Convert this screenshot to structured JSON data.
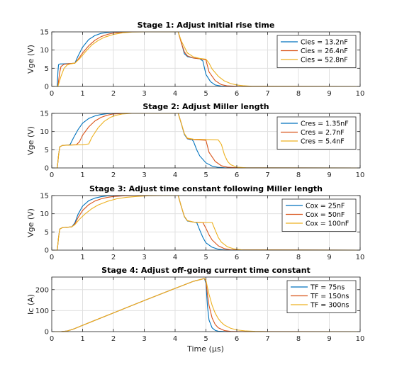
{
  "figure": {
    "xlabel": "Time (μs)"
  },
  "chart_data": [
    {
      "type": "line",
      "title": "Stage 1: Adjust initial rise time",
      "xlabel": "",
      "ylabel": "Vge (V)",
      "xlim": [
        0,
        10
      ],
      "ylim": [
        0,
        15
      ],
      "xticks": [
        0,
        1,
        2,
        3,
        4,
        5,
        6,
        7,
        8,
        9,
        10
      ],
      "yticks": [
        0,
        5,
        10,
        15
      ],
      "grid": true,
      "legend_position": "top-right",
      "series": [
        {
          "name": "Cies = 13.2nF",
          "color": "#0072BD",
          "x": [
            0,
            0.18,
            0.2,
            0.22,
            0.24,
            0.28,
            0.35,
            0.6,
            0.75,
            0.85,
            1.0,
            1.2,
            1.4,
            1.6,
            1.8,
            2.0,
            2.3,
            2.6,
            4.0,
            4.1,
            4.2,
            4.3,
            4.4,
            4.6,
            4.8,
            4.9,
            5.0,
            5.15,
            5.3,
            5.5,
            5.7,
            6.0,
            10.0
          ],
          "y": [
            0,
            0,
            4.0,
            6.0,
            6.1,
            6.2,
            6.2,
            6.3,
            6.4,
            8.3,
            10.8,
            12.9,
            14.0,
            14.6,
            14.85,
            15.0,
            15.0,
            15.0,
            15.0,
            15.0,
            12.2,
            9.0,
            8.2,
            7.8,
            7.6,
            7.0,
            3.3,
            1.3,
            0.4,
            0.1,
            0.03,
            0,
            0
          ]
        },
        {
          "name": "Cies = 26.4nF",
          "color": "#D95319",
          "x": [
            0,
            0.2,
            0.25,
            0.3,
            0.4,
            0.6,
            0.75,
            0.85,
            1.0,
            1.2,
            1.4,
            1.6,
            1.8,
            2.0,
            2.3,
            2.6,
            4.0,
            4.1,
            4.2,
            4.3,
            4.4,
            4.6,
            4.8,
            5.0,
            5.1,
            5.3,
            5.5,
            5.7,
            6.0,
            10.0
          ],
          "y": [
            0,
            0,
            3.5,
            5.5,
            6.1,
            6.3,
            6.4,
            7.4,
            9.2,
            11.2,
            12.7,
            13.7,
            14.3,
            14.7,
            14.95,
            15.0,
            15.0,
            15.0,
            12.0,
            9.5,
            8.4,
            7.8,
            7.6,
            7.3,
            4.0,
            1.6,
            0.5,
            0.15,
            0.03,
            0
          ]
        },
        {
          "name": "Cies = 52.8nF",
          "color": "#EDB120",
          "x": [
            0,
            0.2,
            0.3,
            0.4,
            0.5,
            0.6,
            0.75,
            0.9,
            1.1,
            1.3,
            1.5,
            1.7,
            2.0,
            2.3,
            2.6,
            3.0,
            4.0,
            4.1,
            4.2,
            4.4,
            4.6,
            4.8,
            5.0,
            5.1,
            5.2,
            5.4,
            5.6,
            5.8,
            6.0,
            6.2,
            6.5,
            10.0
          ],
          "y": [
            0,
            0,
            2.8,
            5.0,
            5.9,
            6.2,
            6.4,
            7.6,
            9.6,
            11.4,
            12.6,
            13.5,
            14.3,
            14.75,
            14.95,
            15.0,
            15.0,
            15.0,
            12.5,
            9.2,
            8.1,
            7.7,
            7.5,
            6.4,
            4.8,
            2.8,
            1.5,
            0.8,
            0.4,
            0.2,
            0.05,
            0
          ]
        }
      ]
    },
    {
      "type": "line",
      "title": "Stage 2: Adjust Miller length",
      "xlabel": "",
      "ylabel": "Vge (V)",
      "xlim": [
        0,
        10
      ],
      "ylim": [
        0,
        15
      ],
      "xticks": [
        0,
        1,
        2,
        3,
        4,
        5,
        6,
        7,
        8,
        9,
        10
      ],
      "yticks": [
        0,
        5,
        10,
        15
      ],
      "grid": true,
      "legend_position": "top-right",
      "series": [
        {
          "name": "Cres = 1.35nF",
          "color": "#0072BD",
          "x": [
            0,
            0.18,
            0.22,
            0.26,
            0.35,
            0.55,
            0.6,
            0.7,
            0.85,
            1.0,
            1.2,
            1.4,
            1.6,
            1.8,
            2.0,
            2.4,
            4.0,
            4.1,
            4.2,
            4.3,
            4.4,
            4.5,
            4.55,
            4.6,
            4.7,
            4.8,
            5.0,
            5.2,
            5.4,
            5.6,
            10.0
          ],
          "y": [
            0,
            0,
            3.5,
            5.8,
            6.2,
            6.3,
            6.5,
            8.2,
            10.5,
            12.3,
            13.6,
            14.3,
            14.7,
            14.9,
            15.0,
            15.0,
            15.0,
            15.0,
            12.2,
            9.2,
            8.0,
            7.8,
            7.8,
            7.2,
            5.0,
            3.3,
            1.4,
            0.5,
            0.15,
            0.03,
            0
          ]
        },
        {
          "name": "Cres = 2.7nF",
          "color": "#D95319",
          "x": [
            0,
            0.18,
            0.22,
            0.26,
            0.35,
            0.8,
            0.9,
            1.0,
            1.2,
            1.4,
            1.6,
            1.8,
            2.0,
            2.4,
            4.0,
            4.1,
            4.2,
            4.3,
            4.4,
            4.6,
            4.8,
            5.0,
            5.1,
            5.3,
            5.5,
            5.7,
            6.0,
            10.0
          ],
          "y": [
            0,
            0,
            3.5,
            5.8,
            6.2,
            6.4,
            7.2,
            9.0,
            11.3,
            12.9,
            13.9,
            14.5,
            14.85,
            15.0,
            15.0,
            15.0,
            12.3,
            9.4,
            8.1,
            7.8,
            7.7,
            7.6,
            4.3,
            1.8,
            0.6,
            0.2,
            0.03,
            0
          ]
        },
        {
          "name": "Cres = 5.4nF",
          "color": "#EDB120",
          "x": [
            0,
            0.18,
            0.22,
            0.26,
            0.35,
            1.0,
            1.2,
            1.3,
            1.5,
            1.7,
            1.9,
            2.1,
            2.3,
            2.6,
            4.0,
            4.1,
            4.2,
            4.3,
            4.4,
            4.6,
            5.0,
            5.4,
            5.5,
            5.6,
            5.7,
            5.8,
            6.0,
            6.3,
            10.0
          ],
          "y": [
            0,
            0,
            3.5,
            5.8,
            6.2,
            6.4,
            6.6,
            8.4,
            11.0,
            12.8,
            13.9,
            14.5,
            14.85,
            15.0,
            15.0,
            15.0,
            12.3,
            9.4,
            8.2,
            7.9,
            7.8,
            7.7,
            6.5,
            3.6,
            1.8,
            0.9,
            0.2,
            0.03,
            0
          ]
        }
      ]
    },
    {
      "type": "line",
      "title": "Stage 3: Adjust time constant following Miller length",
      "xlabel": "",
      "ylabel": "Vge (V)",
      "xlim": [
        0,
        10
      ],
      "ylim": [
        0,
        15
      ],
      "xticks": [
        0,
        1,
        2,
        3,
        4,
        5,
        6,
        7,
        8,
        9,
        10
      ],
      "yticks": [
        0,
        5,
        10,
        15
      ],
      "grid": true,
      "legend_position": "top-right",
      "series": [
        {
          "name": "Cox = 25nF",
          "color": "#0072BD",
          "x": [
            0,
            0.18,
            0.22,
            0.26,
            0.35,
            0.65,
            0.75,
            0.85,
            1.0,
            1.2,
            1.4,
            1.6,
            1.8,
            2.0,
            2.3,
            2.8,
            4.0,
            4.1,
            4.2,
            4.3,
            4.4,
            4.6,
            4.7,
            4.8,
            4.9,
            5.0,
            5.2,
            5.4,
            5.6,
            10.0
          ],
          "y": [
            0,
            0,
            3.5,
            5.8,
            6.2,
            6.4,
            7.5,
            9.8,
            12.1,
            13.6,
            14.3,
            14.7,
            14.9,
            15.0,
            15.0,
            15.0,
            15.0,
            15.0,
            12.0,
            9.2,
            8.0,
            7.7,
            7.6,
            5.5,
            3.5,
            2.0,
            0.8,
            0.25,
            0.05,
            0
          ]
        },
        {
          "name": "Cox = 50nF",
          "color": "#D95319",
          "x": [
            0,
            0.18,
            0.22,
            0.26,
            0.35,
            0.65,
            0.75,
            0.85,
            1.0,
            1.2,
            1.4,
            1.6,
            1.8,
            2.0,
            2.3,
            2.7,
            3.0,
            4.0,
            4.1,
            4.2,
            4.3,
            4.4,
            4.6,
            4.9,
            5.0,
            5.1,
            5.2,
            5.4,
            5.6,
            5.8,
            10.0
          ],
          "y": [
            0,
            0,
            3.5,
            5.8,
            6.2,
            6.4,
            7.2,
            8.9,
            10.9,
            12.5,
            13.5,
            14.1,
            14.5,
            14.75,
            14.9,
            15.0,
            15.0,
            15.0,
            15.0,
            12.0,
            9.3,
            8.1,
            7.7,
            7.6,
            6.0,
            4.2,
            2.8,
            1.2,
            0.4,
            0.1,
            0
          ]
        },
        {
          "name": "Cox = 100nF",
          "color": "#EDB120",
          "x": [
            0,
            0.18,
            0.22,
            0.26,
            0.35,
            0.65,
            0.75,
            0.9,
            1.1,
            1.3,
            1.5,
            1.8,
            2.1,
            2.4,
            2.8,
            3.2,
            3.6,
            4.0,
            4.1,
            4.2,
            4.3,
            4.4,
            4.6,
            5.0,
            5.2,
            5.3,
            5.4,
            5.5,
            5.7,
            5.9,
            6.2,
            10.0
          ],
          "y": [
            0,
            0,
            3.5,
            5.8,
            6.2,
            6.4,
            7.0,
            8.5,
            10.1,
            11.4,
            12.4,
            13.4,
            14.1,
            14.5,
            14.8,
            14.95,
            15.0,
            15.0,
            15.0,
            12.0,
            9.3,
            8.1,
            7.7,
            7.6,
            7.6,
            5.5,
            3.5,
            2.2,
            0.9,
            0.35,
            0.05,
            0
          ]
        }
      ]
    },
    {
      "type": "line",
      "title": "Stage 4: Adjust off-going current time constant",
      "xlabel": "Time (μs)",
      "ylabel": "Ic (A)",
      "xlim": [
        0,
        10
      ],
      "ylim": [
        0,
        260
      ],
      "xticks": [
        0,
        1,
        2,
        3,
        4,
        5,
        6,
        7,
        8,
        9,
        10
      ],
      "yticks": [
        0,
        100,
        200
      ],
      "grid": true,
      "legend_position": "top-right",
      "series": [
        {
          "name": "TF = 75ns",
          "color": "#0072BD",
          "x": [
            0,
            0.3,
            0.5,
            0.7,
            1.0,
            2.0,
            3.0,
            4.0,
            4.6,
            4.95,
            5.0,
            5.05,
            5.1,
            5.2,
            5.3,
            5.4,
            5.6,
            5.8,
            6.0,
            10.0
          ],
          "y": [
            0,
            0,
            3,
            12,
            30,
            89,
            148,
            206,
            240,
            253,
            230,
            120,
            55,
            18,
            6,
            2,
            0.5,
            0,
            0,
            0
          ]
        },
        {
          "name": "TF = 150ns",
          "color": "#D95319",
          "x": [
            0,
            0.3,
            0.5,
            0.7,
            1.0,
            2.0,
            3.0,
            4.0,
            4.6,
            4.95,
            5.0,
            5.05,
            5.1,
            5.2,
            5.3,
            5.4,
            5.6,
            5.8,
            6.0,
            10.0
          ],
          "y": [
            0,
            0,
            3,
            12,
            30,
            89,
            148,
            206,
            240,
            253,
            240,
            175,
            125,
            65,
            34,
            18,
            5,
            1.3,
            0.3,
            0
          ]
        },
        {
          "name": "TF = 300ns",
          "color": "#EDB120",
          "x": [
            0,
            0.3,
            0.5,
            0.7,
            1.0,
            2.0,
            3.0,
            4.0,
            4.6,
            4.95,
            5.0,
            5.05,
            5.1,
            5.2,
            5.3,
            5.4,
            5.5,
            5.6,
            5.8,
            6.0,
            6.3,
            6.6,
            7.0,
            10.0
          ],
          "y": [
            0,
            0,
            3,
            12,
            30,
            89,
            148,
            206,
            240,
            253,
            245,
            210,
            178,
            125,
            88,
            62,
            44,
            31,
            16,
            8,
            3,
            1,
            0,
            0
          ]
        }
      ]
    }
  ]
}
